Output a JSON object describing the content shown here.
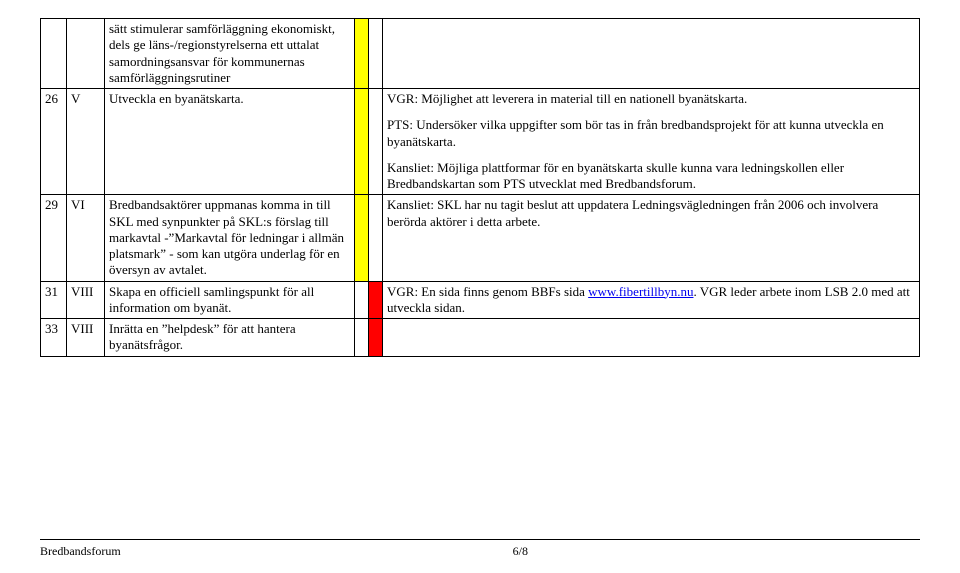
{
  "colors": {
    "yellow": "#ffff00",
    "red": "#ff0000",
    "link": "#0000ee",
    "border": "#000000",
    "background": "#ffffff",
    "text": "#000000"
  },
  "rows": {
    "r0": {
      "desc": "sätt stimulerar samförläggning ekonomiskt, dels ge läns-/regionstyrelserna ett uttalat samordningsansvar för kommunernas samförläggningsrutiner"
    },
    "r1": {
      "num": "26",
      "roman": "V",
      "desc": "Utveckla en byanätskarta.",
      "notes_p1": "VGR: Möjlighet att leverera in material till en nationell byanätskarta.",
      "notes_p2": "PTS: Undersöker vilka uppgifter som bör tas in från bredbandsprojekt för att kunna utveckla en byanätskarta.",
      "notes_p3": "Kansliet: Möjliga plattformar för en byanätskarta skulle kunna vara ledningskollen eller Bredbandskartan som PTS utvecklat med Bredbandsforum."
    },
    "r2": {
      "num": "29",
      "roman": "VI",
      "desc": "Bredbandsaktörer uppmanas komma in till SKL med synpunkter på SKL:s förslag till markavtal -”Markavtal för ledningar i allmän platsmark” - som kan utgöra underlag för en översyn av avtalet.",
      "notes": "Kansliet: SKL har nu tagit beslut att uppdatera Ledningsvägledningen från 2006 och involvera berörda aktörer i detta arbete."
    },
    "r3": {
      "num": "31",
      "roman": "VIII",
      "desc": "Skapa en officiell samlingspunkt för all information om byanät.",
      "notes_prefix": "VGR: En sida finns genom BBFs sida ",
      "notes_link": "www.fibertillbyn.nu",
      "notes_suffix": ". VGR leder arbete inom LSB 2.0 med att utveckla sidan."
    },
    "r4": {
      "num": "33",
      "roman": "VIII",
      "desc": "Inrätta en ”helpdesk” för att hantera byanätsfrågor."
    }
  },
  "footer": {
    "left": "Bredbandsforum",
    "center": "6/8"
  }
}
